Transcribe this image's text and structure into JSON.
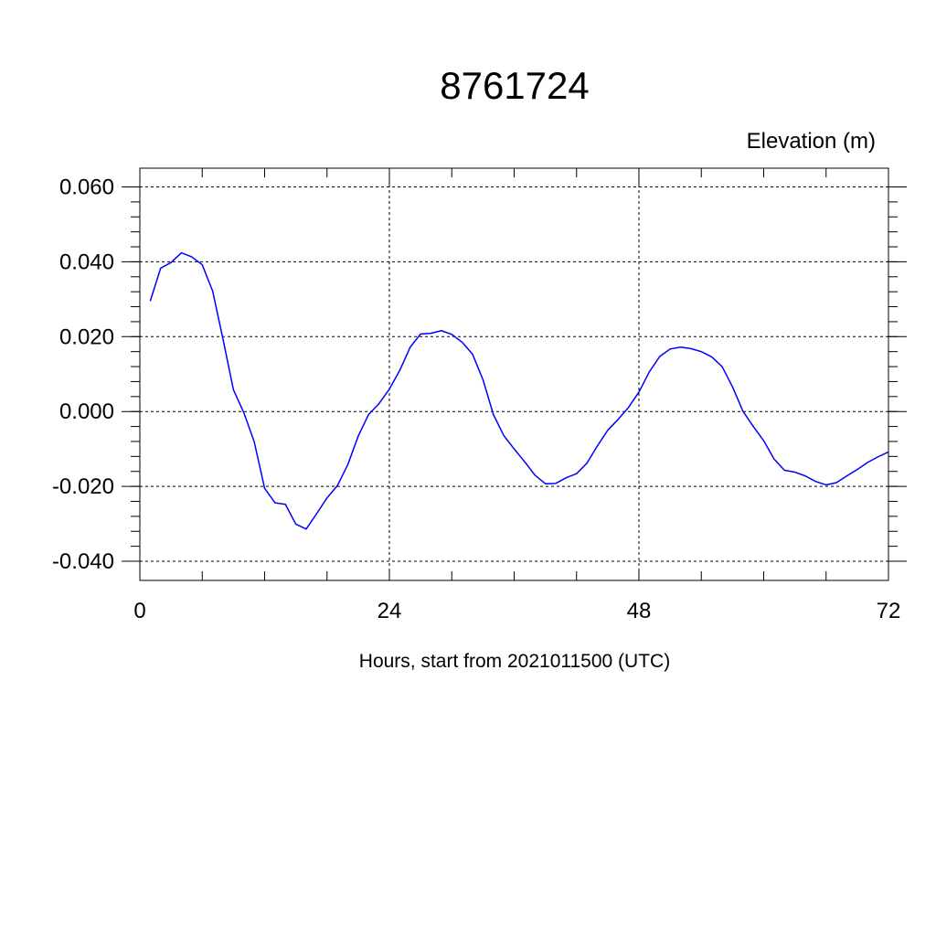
{
  "chart_data": {
    "type": "line",
    "title": "8761724",
    "ylabel": "Elevation (m)",
    "xlabel": "Hours, start from 2021011500 (UTC)",
    "xlim": [
      0,
      72
    ],
    "ylim": [
      -0.04,
      0.06
    ],
    "xticks": [
      0,
      24,
      48,
      72
    ],
    "xtick_labels": [
      "0",
      "24",
      "48",
      "72"
    ],
    "yticks": [
      -0.04,
      -0.02,
      0.0,
      0.02,
      0.04,
      0.06
    ],
    "ytick_labels": [
      "-0.040",
      "-0.020",
      "0.000",
      "0.020",
      "0.040",
      "0.060"
    ],
    "grid": true,
    "line_color": "#0000ff",
    "series": [
      {
        "x": [
          1,
          2,
          3,
          4,
          5,
          6,
          7,
          8,
          9,
          10,
          11,
          12,
          13,
          14,
          15,
          16,
          17,
          18,
          19,
          20,
          21,
          22,
          23,
          24,
          25,
          26,
          27,
          28,
          29,
          30,
          31,
          32,
          33,
          34,
          35,
          36,
          37,
          38,
          39,
          40,
          41,
          42,
          43,
          44,
          45,
          46,
          47,
          48,
          49,
          50,
          51,
          52,
          53,
          54,
          55,
          56,
          57,
          58,
          59,
          60,
          61,
          62,
          63,
          64,
          65,
          66,
          67,
          68,
          69,
          70,
          71,
          72
        ],
        "values": [
          0.0295,
          0.0383,
          0.0398,
          0.0424,
          0.0413,
          0.0392,
          0.0322,
          0.0193,
          0.0058,
          -0.0003,
          -0.0081,
          -0.0205,
          -0.0244,
          -0.0248,
          -0.0301,
          -0.0314,
          -0.0273,
          -0.0231,
          -0.0198,
          -0.0142,
          -0.0066,
          -0.0008,
          0.0021,
          0.006,
          0.011,
          0.0172,
          0.0207,
          0.0209,
          0.0216,
          0.0206,
          0.0185,
          0.0153,
          0.0085,
          -0.0008,
          -0.0064,
          -0.01,
          -0.0134,
          -0.017,
          -0.0193,
          -0.0192,
          -0.0177,
          -0.0166,
          -0.0138,
          -0.0092,
          -0.005,
          -0.0021,
          0.0011,
          0.0052,
          0.0106,
          0.0147,
          0.0167,
          0.0172,
          0.0168,
          0.016,
          0.0146,
          0.012,
          0.0066,
          0.0001,
          -0.004,
          -0.0078,
          -0.0127,
          -0.0157,
          -0.0162,
          -0.0172,
          -0.0187,
          -0.0196,
          -0.019,
          -0.0172,
          -0.0155,
          -0.0136,
          -0.0121,
          -0.0108
        ]
      }
    ]
  }
}
